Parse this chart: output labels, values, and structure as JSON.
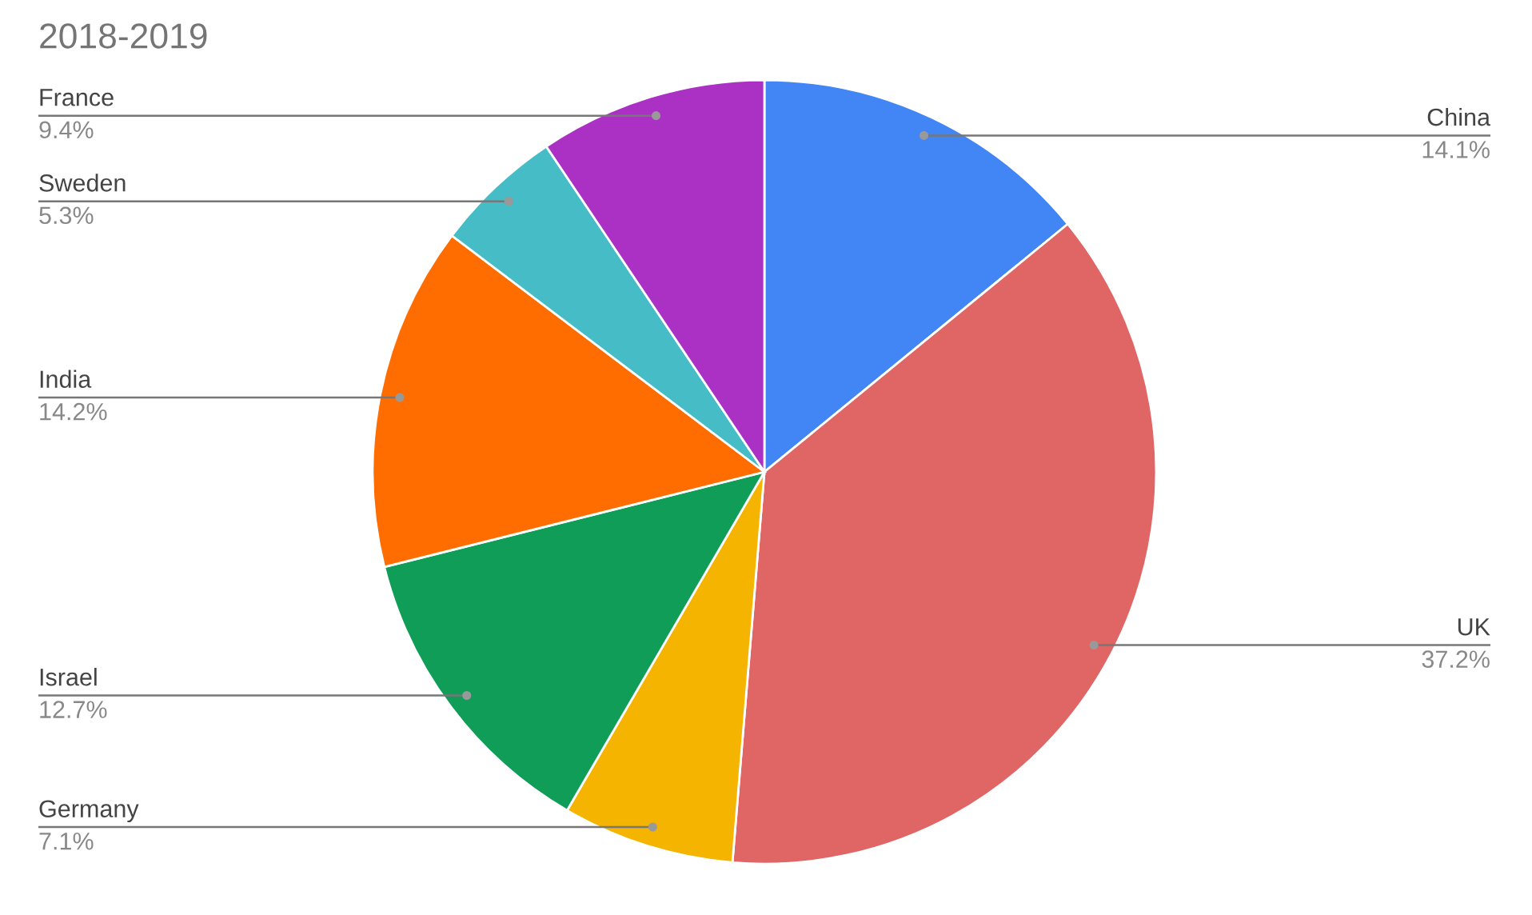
{
  "chart_data": {
    "type": "pie",
    "title": "2018-2019",
    "categories": [
      "China",
      "UK",
      "Germany",
      "Israel",
      "India",
      "Sweden",
      "France"
    ],
    "values": [
      14.1,
      37.2,
      7.1,
      12.7,
      14.2,
      5.3,
      9.4
    ],
    "value_labels": [
      "14.1%",
      "37.2%",
      "7.1%",
      "12.7%",
      "14.2%",
      "5.3%",
      "9.4%"
    ],
    "colors": [
      "#4285f4",
      "#e06666",
      "#f4b400",
      "#0f9d58",
      "#ff6d00",
      "#46bdc6",
      "#ab30c4"
    ],
    "legend": false
  }
}
